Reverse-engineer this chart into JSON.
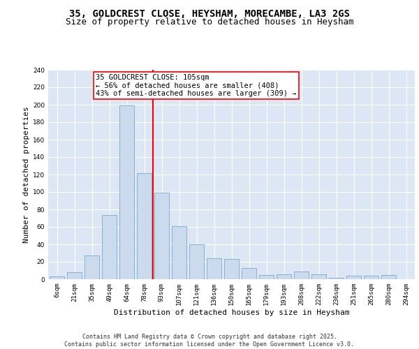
{
  "title1": "35, GOLDCREST CLOSE, HEYSHAM, MORECAMBE, LA3 2GS",
  "title2": "Size of property relative to detached houses in Heysham",
  "xlabel": "Distribution of detached houses by size in Heysham",
  "ylabel": "Number of detached properties",
  "categories": [
    "6sqm",
    "21sqm",
    "35sqm",
    "49sqm",
    "64sqm",
    "78sqm",
    "93sqm",
    "107sqm",
    "121sqm",
    "136sqm",
    "150sqm",
    "165sqm",
    "179sqm",
    "193sqm",
    "208sqm",
    "222sqm",
    "236sqm",
    "251sqm",
    "265sqm",
    "280sqm",
    "294sqm"
  ],
  "values": [
    3,
    8,
    27,
    74,
    199,
    122,
    99,
    61,
    40,
    24,
    23,
    13,
    5,
    6,
    9,
    6,
    2,
    4,
    4,
    5,
    0
  ],
  "bar_color": "#ccdaed",
  "bar_edge_color": "#7aaad0",
  "vline_color": "red",
  "annotation_text": "35 GOLDCREST CLOSE: 105sqm\n← 56% of detached houses are smaller (408)\n43% of semi-detached houses are larger (309) →",
  "annotation_box_color": "white",
  "annotation_box_edge": "red",
  "bg_color": "#dce6f5",
  "grid_color": "white",
  "footer": "Contains HM Land Registry data © Crown copyright and database right 2025.\nContains public sector information licensed under the Open Government Licence v3.0.",
  "ylim": [
    0,
    240
  ],
  "title_fontsize": 10,
  "subtitle_fontsize": 9,
  "axis_label_fontsize": 8,
  "tick_fontsize": 6.5,
  "annotation_fontsize": 7.5,
  "footer_fontsize": 6
}
